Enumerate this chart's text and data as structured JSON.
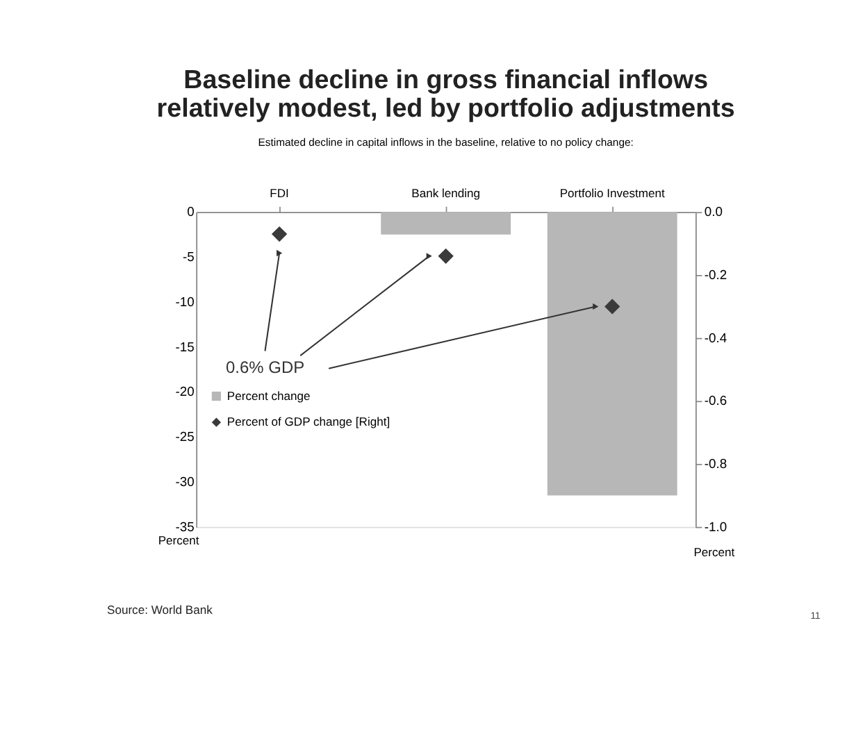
{
  "chart_data": {
    "type": "bar",
    "title": [
      "Baseline decline in gross financial inflows",
      "relatively modest, led by portfolio adjustments"
    ],
    "subtitle": "Estimated  decline  in capital inflows in the baseline,  relative  to no policy change:",
    "categories": [
      "FDI",
      "Bank lending",
      "Portfolio Investment"
    ],
    "series": [
      {
        "name": "Percent change",
        "color": "#b7b7b7",
        "values": [
          0,
          -2.5,
          -31.5
        ]
      },
      {
        "name": "Percent of GDP change [Right]",
        "type": "scatter",
        "axis": "y2",
        "color": "#3a3a3a",
        "values": [
          -0.07,
          -0.14,
          -0.3
        ]
      }
    ],
    "ylabel": "Percent",
    "y2label": "Percent",
    "ylim": [
      -35,
      0
    ],
    "yticks": [
      -35,
      -30,
      -25,
      -20,
      -15,
      -10,
      -5,
      0
    ],
    "y2lim": [
      -1.0,
      0.0
    ],
    "y2ticks": [
      {
        "value": -1.0,
        "label": "-1.0"
      },
      -0.8,
      -0.6,
      -0.4,
      -0.2,
      {
        "value": 0.0,
        "label": "0.0"
      }
    ],
    "marker": "diamond",
    "grid": false,
    "legend": "left",
    "annotations": [
      "0.6% GDP",
      "Source: World Bank",
      "11"
    ]
  }
}
